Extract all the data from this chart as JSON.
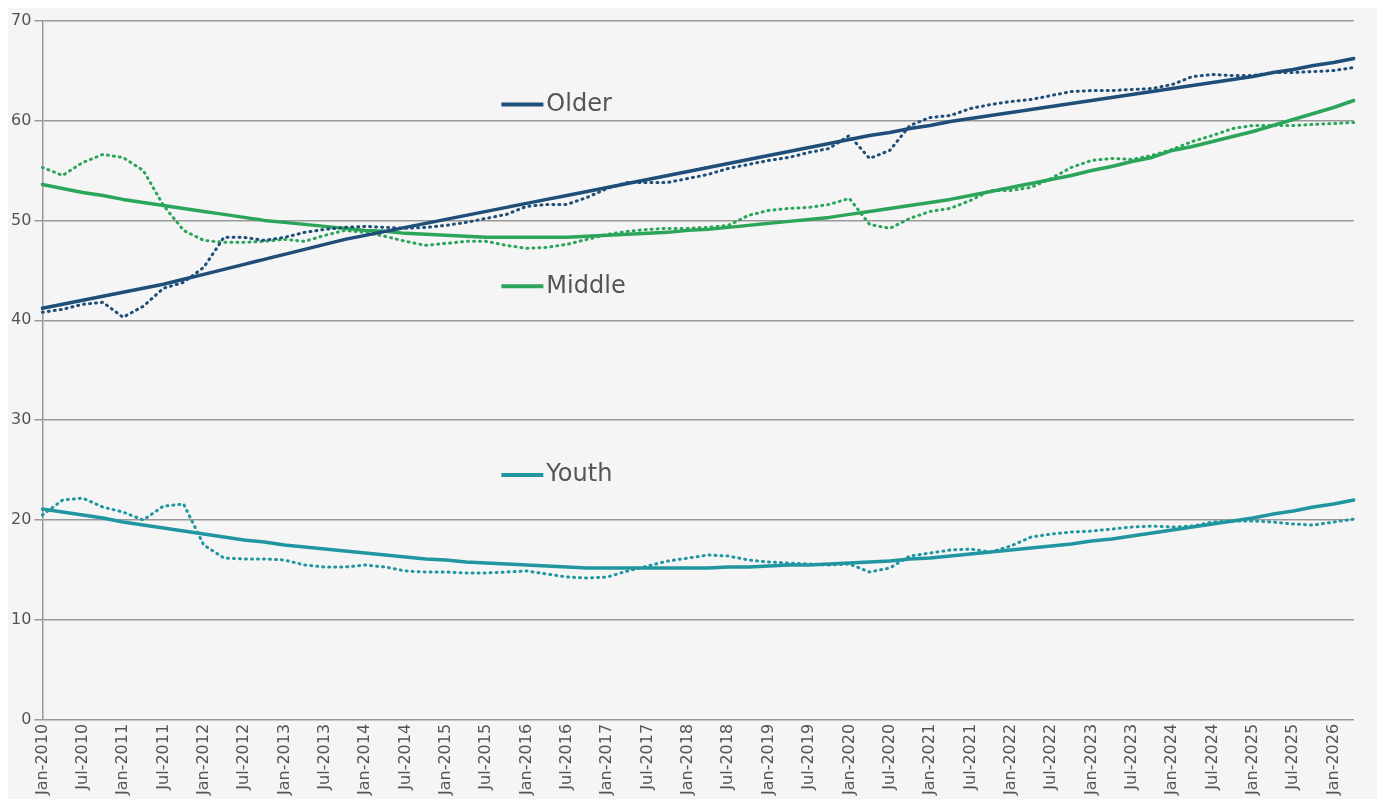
{
  "chart_data": {
    "type": "line",
    "categories": [
      "Jan-2010",
      null,
      "Jul-2010",
      null,
      "Jan-2011",
      null,
      "Jul-2011",
      null,
      "Jan-2012",
      null,
      "Jul-2012",
      null,
      "Jan-2013",
      null,
      "Jul-2013",
      null,
      "Jan-2014",
      null,
      "Jul-2014",
      null,
      "Jan-2015",
      null,
      "Jul-2015",
      null,
      "Jan-2016",
      null,
      "Jul-2016",
      null,
      "Jan-2017",
      null,
      "Jul-2017",
      null,
      "Jan-2018",
      null,
      "Jul-2018",
      null,
      "Jan-2019",
      null,
      "Jul-2019",
      null,
      "Jan-2020",
      null,
      "Jul-2020",
      null,
      "Jan-2021",
      null,
      "Jul-2021",
      null,
      "Jan-2022",
      null,
      "Jul-2022",
      null,
      "Jan-2023",
      null,
      "Jul-2023",
      null,
      "Jan-2024",
      null,
      "Jul-2024",
      null,
      "Jan-2025",
      null,
      "Jul-2025",
      null,
      "Jan-2026",
      null
    ],
    "ylim": [
      0,
      70
    ],
    "yticks": [
      0,
      10,
      20,
      30,
      40,
      50,
      60,
      70
    ],
    "grid": "y",
    "marker": "none",
    "legend": "top",
    "series": [
      {
        "color": "#1f4e79",
        "line_style": "dotted",
        "values": [
          40.8,
          41.1,
          41.6,
          41.8,
          40.3,
          41.4,
          43.2,
          43.8,
          45.3,
          48.3,
          48.3,
          48.0,
          48.3,
          48.8,
          49.1,
          49.3,
          49.4,
          49.3,
          49.2,
          49.3,
          49.5,
          49.8,
          50.2,
          50.6,
          51.4,
          51.6,
          51.6,
          52.3,
          53.2,
          53.8,
          53.8,
          53.8,
          54.2,
          54.6,
          55.2,
          55.6,
          56.0,
          56.3,
          56.8,
          57.2,
          58.5,
          56.2,
          57.0,
          59.5,
          60.3,
          60.5,
          61.2,
          61.6,
          61.9,
          62.1,
          62.5,
          62.9,
          63.0,
          63.0,
          63.1,
          63.2,
          63.6,
          64.4,
          64.6,
          64.5,
          64.5,
          64.8,
          64.8,
          64.9,
          65.0,
          65.3
        ]
      },
      {
        "name": "Older",
        "color": "#1f4e79",
        "line_style": "solid",
        "values": [
          41.2,
          41.6,
          42.0,
          42.4,
          42.8,
          43.2,
          43.6,
          44.1,
          44.6,
          45.1,
          45.6,
          46.1,
          46.6,
          47.1,
          47.6,
          48.1,
          48.5,
          48.9,
          49.3,
          49.7,
          50.1,
          50.5,
          50.9,
          51.3,
          51.7,
          52.1,
          52.5,
          52.9,
          53.3,
          53.7,
          54.1,
          54.5,
          54.9,
          55.3,
          55.7,
          56.1,
          56.5,
          56.9,
          57.3,
          57.7,
          58.1,
          58.5,
          58.8,
          59.2,
          59.5,
          59.9,
          60.2,
          60.5,
          60.8,
          61.1,
          61.4,
          61.7,
          62.0,
          62.3,
          62.6,
          62.9,
          63.2,
          63.5,
          63.8,
          64.1,
          64.4,
          64.8,
          65.1,
          65.5,
          65.8,
          66.2
        ]
      },
      {
        "color": "#2aa55a",
        "line_style": "dotted",
        "values": [
          55.3,
          54.5,
          55.8,
          56.6,
          56.3,
          55.0,
          51.5,
          49.0,
          48.0,
          47.8,
          47.8,
          47.9,
          48.1,
          47.9,
          48.5,
          49.0,
          48.8,
          48.4,
          47.9,
          47.5,
          47.7,
          47.9,
          47.9,
          47.5,
          47.2,
          47.3,
          47.6,
          48.1,
          48.6,
          48.9,
          49.1,
          49.2,
          49.2,
          49.3,
          49.5,
          50.5,
          51.0,
          51.2,
          51.3,
          51.6,
          52.2,
          49.6,
          49.2,
          50.2,
          50.9,
          51.2,
          52.0,
          53.0,
          53.0,
          53.3,
          54.2,
          55.3,
          56.0,
          56.2,
          56.1,
          56.5,
          57.1,
          57.9,
          58.5,
          59.2,
          59.5,
          59.5,
          59.5,
          59.6,
          59.7,
          59.8
        ]
      },
      {
        "name": "Middle",
        "color": "#2aa55a",
        "line_style": "solid",
        "values": [
          53.6,
          53.2,
          52.8,
          52.5,
          52.1,
          51.8,
          51.5,
          51.2,
          50.9,
          50.6,
          50.3,
          50.0,
          49.8,
          49.6,
          49.4,
          49.2,
          49.0,
          48.9,
          48.7,
          48.6,
          48.5,
          48.4,
          48.3,
          48.3,
          48.3,
          48.3,
          48.3,
          48.4,
          48.5,
          48.6,
          48.7,
          48.8,
          49.0,
          49.1,
          49.3,
          49.5,
          49.7,
          49.9,
          50.1,
          50.3,
          50.6,
          50.9,
          51.2,
          51.5,
          51.8,
          52.1,
          52.5,
          52.9,
          53.3,
          53.7,
          54.1,
          54.5,
          55.0,
          55.4,
          55.9,
          56.3,
          57.0,
          57.4,
          57.9,
          58.4,
          58.9,
          59.5,
          60.1,
          60.7,
          61.3,
          62.0
        ]
      },
      {
        "color": "#2196a0",
        "line_style": "dotted",
        "values": [
          20.5,
          22.0,
          22.2,
          21.3,
          20.8,
          20.0,
          21.4,
          21.6,
          17.5,
          16.2,
          16.1,
          16.1,
          16.0,
          15.5,
          15.3,
          15.3,
          15.5,
          15.3,
          14.9,
          14.8,
          14.8,
          14.7,
          14.7,
          14.8,
          14.9,
          14.6,
          14.3,
          14.2,
          14.3,
          14.9,
          15.4,
          15.9,
          16.2,
          16.5,
          16.4,
          16.0,
          15.8,
          15.7,
          15.6,
          15.5,
          15.6,
          14.8,
          15.2,
          16.4,
          16.7,
          17.0,
          17.1,
          16.8,
          17.4,
          18.3,
          18.6,
          18.8,
          18.9,
          19.1,
          19.3,
          19.4,
          19.3,
          19.4,
          19.8,
          19.9,
          19.9,
          19.8,
          19.6,
          19.5,
          19.8,
          20.1
        ]
      },
      {
        "name": "Youth",
        "color": "#2196a0",
        "line_style": "solid",
        "values": [
          21.1,
          20.8,
          20.5,
          20.2,
          19.8,
          19.5,
          19.2,
          18.9,
          18.6,
          18.3,
          18.0,
          17.8,
          17.5,
          17.3,
          17.1,
          16.9,
          16.7,
          16.5,
          16.3,
          16.1,
          16.0,
          15.8,
          15.7,
          15.6,
          15.5,
          15.4,
          15.3,
          15.2,
          15.2,
          15.2,
          15.2,
          15.2,
          15.2,
          15.2,
          15.3,
          15.3,
          15.4,
          15.5,
          15.5,
          15.6,
          15.7,
          15.8,
          15.9,
          16.1,
          16.2,
          16.4,
          16.6,
          16.8,
          17.0,
          17.2,
          17.4,
          17.6,
          17.9,
          18.1,
          18.4,
          18.7,
          19.0,
          19.3,
          19.6,
          19.9,
          20.2,
          20.6,
          20.9,
          21.3,
          21.6,
          22.0
        ]
      }
    ]
  }
}
